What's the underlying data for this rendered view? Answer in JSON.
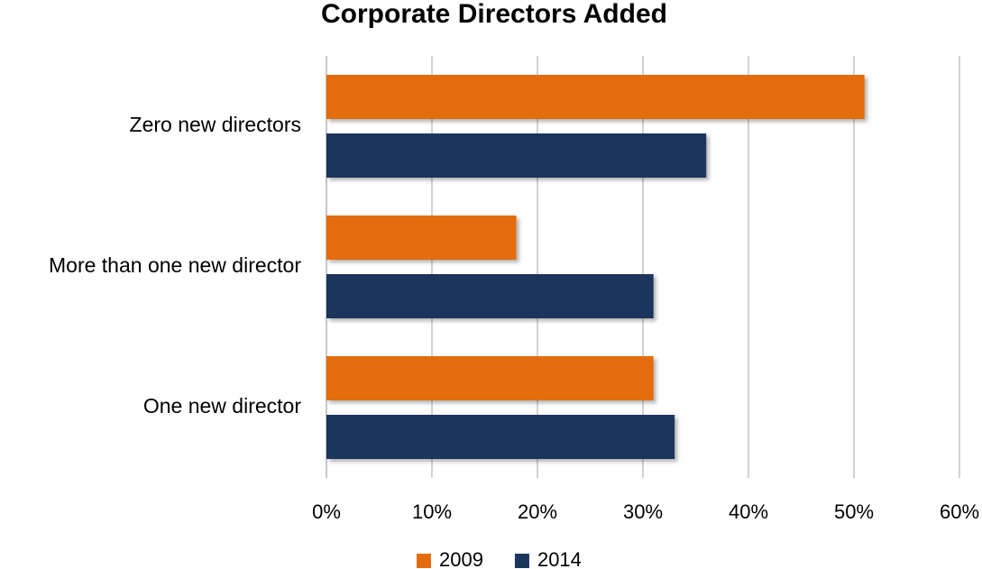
{
  "chart_data": {
    "type": "hbar",
    "title": "Corporate Directors Added",
    "categories": [
      "Zero new directors",
      "More than one new director",
      "One new director"
    ],
    "series": [
      {
        "name": "2009",
        "color": "#e36c0a",
        "values": [
          51,
          18,
          31
        ]
      },
      {
        "name": "2014",
        "color": "#1b365d",
        "values": [
          36,
          31,
          33
        ]
      }
    ],
    "xlim": [
      0,
      60
    ],
    "xticks": [
      {
        "value": 0,
        "label": "0%"
      },
      {
        "value": 10,
        "label": "10%"
      },
      {
        "value": 20,
        "label": "20%"
      },
      {
        "value": 30,
        "label": "30%"
      },
      {
        "value": 40,
        "label": "40%"
      },
      {
        "value": 50,
        "label": "50%"
      },
      {
        "value": 60,
        "label": "60%"
      }
    ],
    "grid": true,
    "legend": "bottom"
  }
}
